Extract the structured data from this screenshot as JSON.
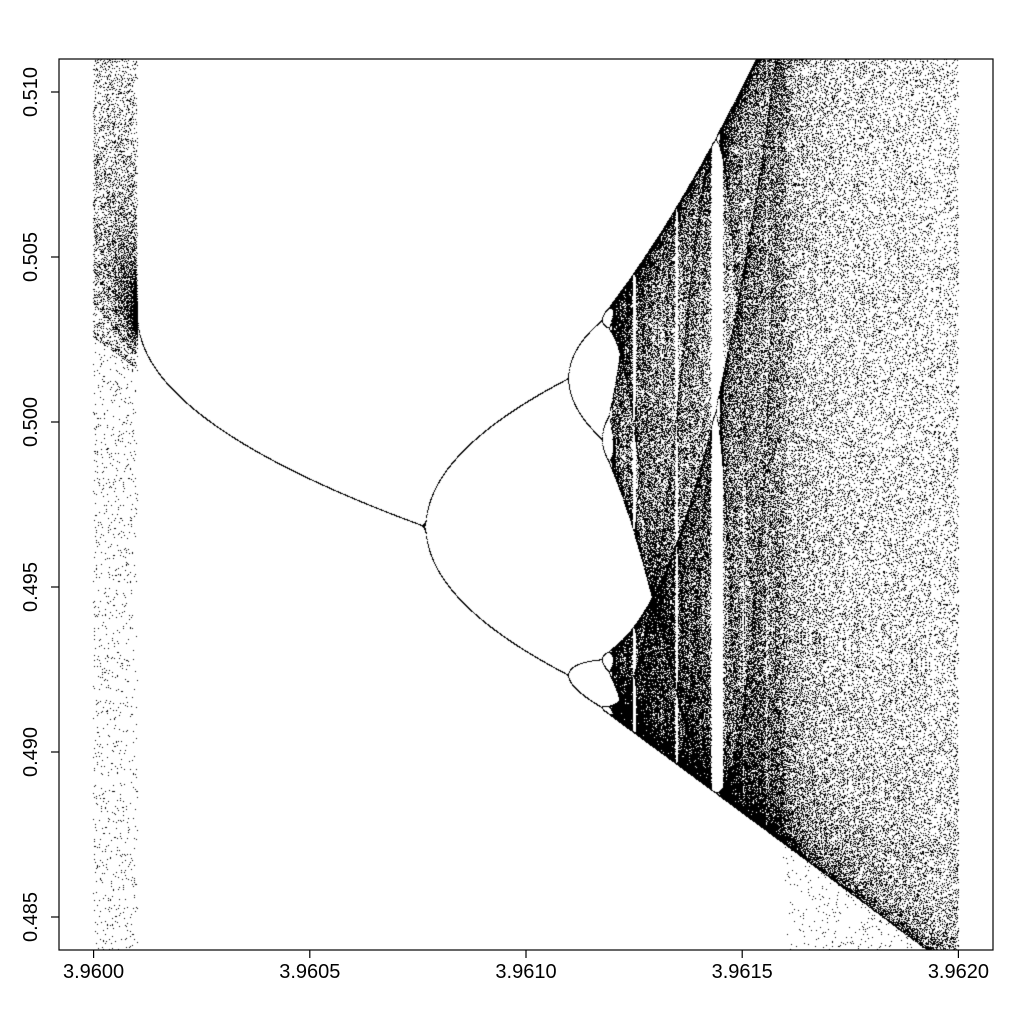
{
  "chart_data": {
    "type": "scatter",
    "title": "",
    "xlabel": "",
    "ylabel": "",
    "xlim": [
      3.95992,
      3.96208
    ],
    "ylim": [
      0.484,
      0.511
    ],
    "grid": false,
    "legend": "none",
    "x_ticks": [
      3.96,
      3.9605,
      3.961,
      3.9615,
      3.962
    ],
    "x_tick_labels": [
      "3.9600",
      "3.9605",
      "3.9610",
      "3.9615",
      "3.9620"
    ],
    "y_ticks": [
      0.485,
      0.49,
      0.495,
      0.5,
      0.505,
      0.51
    ],
    "y_tick_labels": [
      "0.485",
      "0.490",
      "0.495",
      "0.500",
      "0.505",
      "0.510"
    ],
    "description": "Bifurcation diagram of the logistic map x_{n+1}=r x_n (1-x_n): iterate values x plotted against parameter r",
    "r_range": [
      3.96,
      3.962
    ],
    "point_color": "#000000"
  }
}
